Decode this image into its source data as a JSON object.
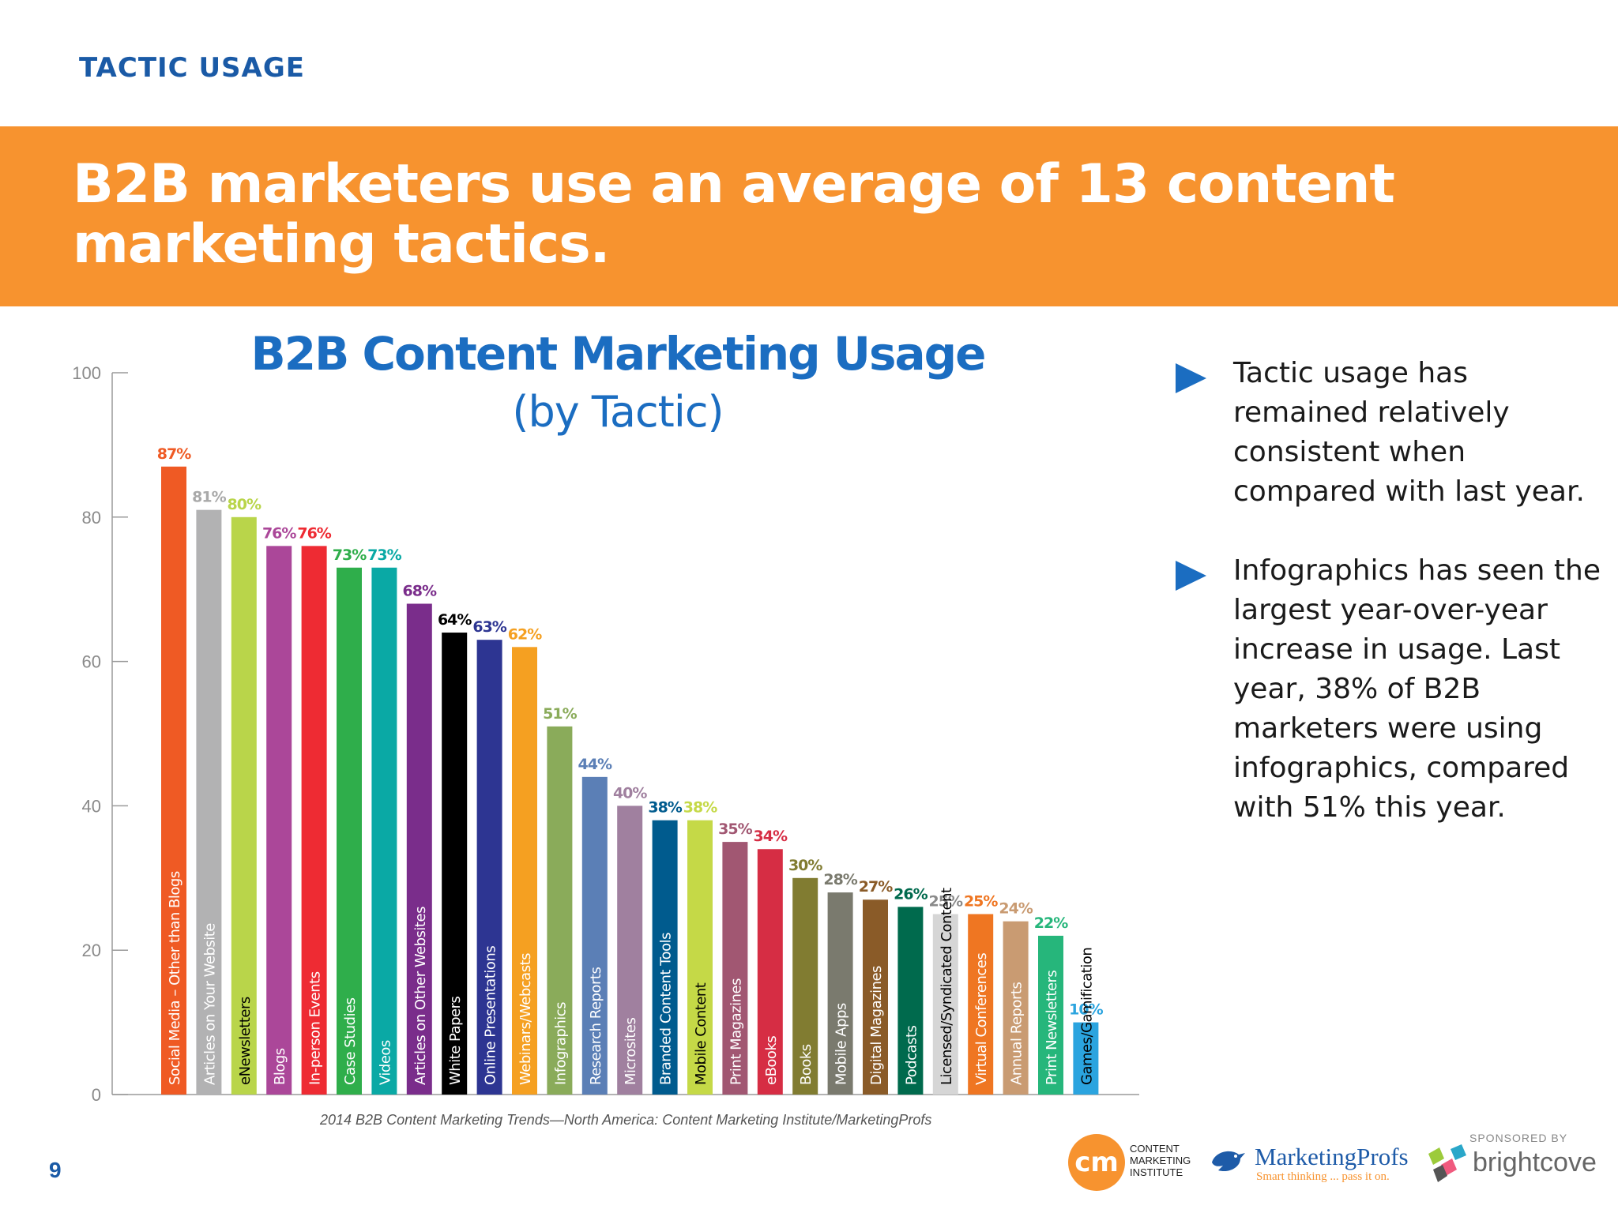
{
  "header": {
    "section_label": "TACTIC USAGE",
    "headline": "B2B marketers use an average of 13 content marketing tactics."
  },
  "chart_data": {
    "type": "bar",
    "title": "B2B Content Marketing Usage",
    "subtitle": "(by Tactic)",
    "ylim": [
      0,
      100
    ],
    "yticks": [
      0,
      20,
      40,
      60,
      80,
      100
    ],
    "grid": false,
    "categories": [
      "Social Media – Other than Blogs",
      "Articles on Your Website",
      "eNewsletters",
      "Blogs",
      "In-person Events",
      "Case Studies",
      "Videos",
      "Articles on Other Websites",
      "White Papers",
      "Online Presentations",
      "Webinars/Webcasts",
      "Infographics",
      "Research Reports",
      "Microsites",
      "Branded Content Tools",
      "Mobile Content",
      "Print Magazines",
      "eBooks",
      "Books",
      "Mobile Apps",
      "Digital Magazines",
      "Podcasts",
      "Licensed/Syndicated Content",
      "Virtual Conferences",
      "Annual Reports",
      "Print Newsletters",
      "Games/Gamification"
    ],
    "values": [
      87,
      81,
      80,
      76,
      76,
      73,
      73,
      68,
      64,
      63,
      62,
      51,
      44,
      40,
      38,
      38,
      35,
      34,
      30,
      28,
      27,
      26,
      25,
      25,
      24,
      22,
      10
    ],
    "colors": [
      "#ef5a24",
      "#b2b2b3",
      "#b9d54a",
      "#ab4799",
      "#ee2b33",
      "#2fae4b",
      "#0aa9a5",
      "#7a2d8b",
      "#000000",
      "#2d3592",
      "#f5a021",
      "#8aab5a",
      "#5b7fb6",
      "#a0809f",
      "#005b8e",
      "#c5d947",
      "#a15772",
      "#d62d44",
      "#817c31",
      "#7a7a6e",
      "#8a5b28",
      "#006a4d",
      "#d6d6d6",
      "#ef7622",
      "#c99b72",
      "#26b67b",
      "#2ba4df"
    ],
    "source": "2014 B2B Content Marketing Trends—North America: Content Marketing Institute/MarketingProfs"
  },
  "bullets": [
    "Tactic usage has remained relatively consistent when compared with last year.",
    "Infographics has seen the largest year-over-year increase in usage. Last year, 38% of B2B marketers were using infographics, compared with 51% this year."
  ],
  "footer": {
    "page_number": "9",
    "cmi_text": [
      "CONTENT",
      "MARKETING",
      "INSTITUTE"
    ],
    "cmi_monogram": "cm",
    "marketingprofs_name": "MarketingProfs",
    "marketingprofs_tagline": "Smart thinking ... pass it on.",
    "sponsored_by": "SPONSORED BY",
    "brightcove_name": "brightcove"
  }
}
